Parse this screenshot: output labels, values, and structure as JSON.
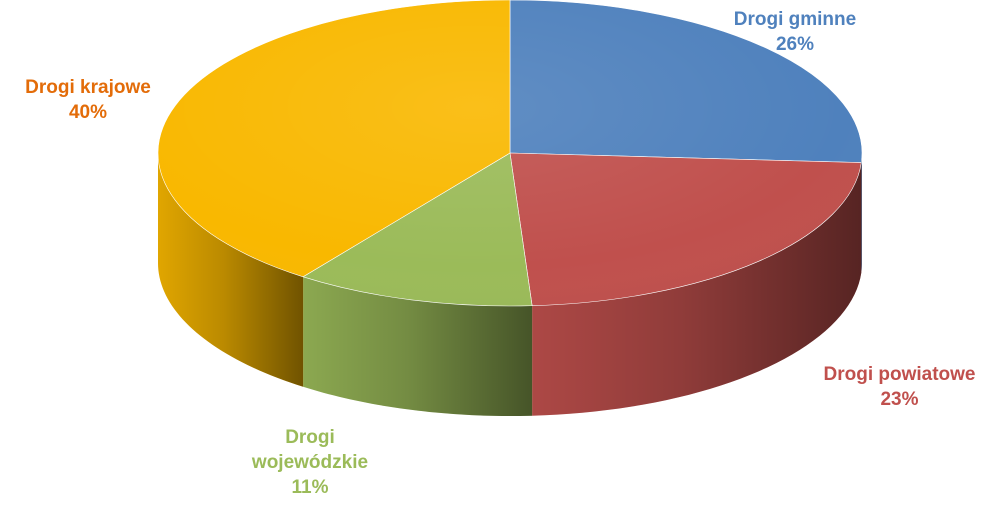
{
  "chart_data": {
    "type": "pie",
    "style": "3d",
    "slices": [
      {
        "label": "Drogi gminne",
        "value_text": "26%",
        "value": 26,
        "color": "#4F81BD",
        "label_color": "#4F81BD"
      },
      {
        "label": "Drogi powiatowe",
        "value_text": "23%",
        "value": 23,
        "color": "#C0504D",
        "label_color": "#C0504D"
      },
      {
        "label": "Drogi wojewódzkie",
        "value_text": "11%",
        "value": 11,
        "color": "#9BBB59",
        "label_color": "#9BBB59"
      },
      {
        "label": "Drogi krajowe",
        "value_text": "40%",
        "value": 40,
        "color": "#F9B800",
        "label_color": "#E36C09"
      }
    ]
  }
}
